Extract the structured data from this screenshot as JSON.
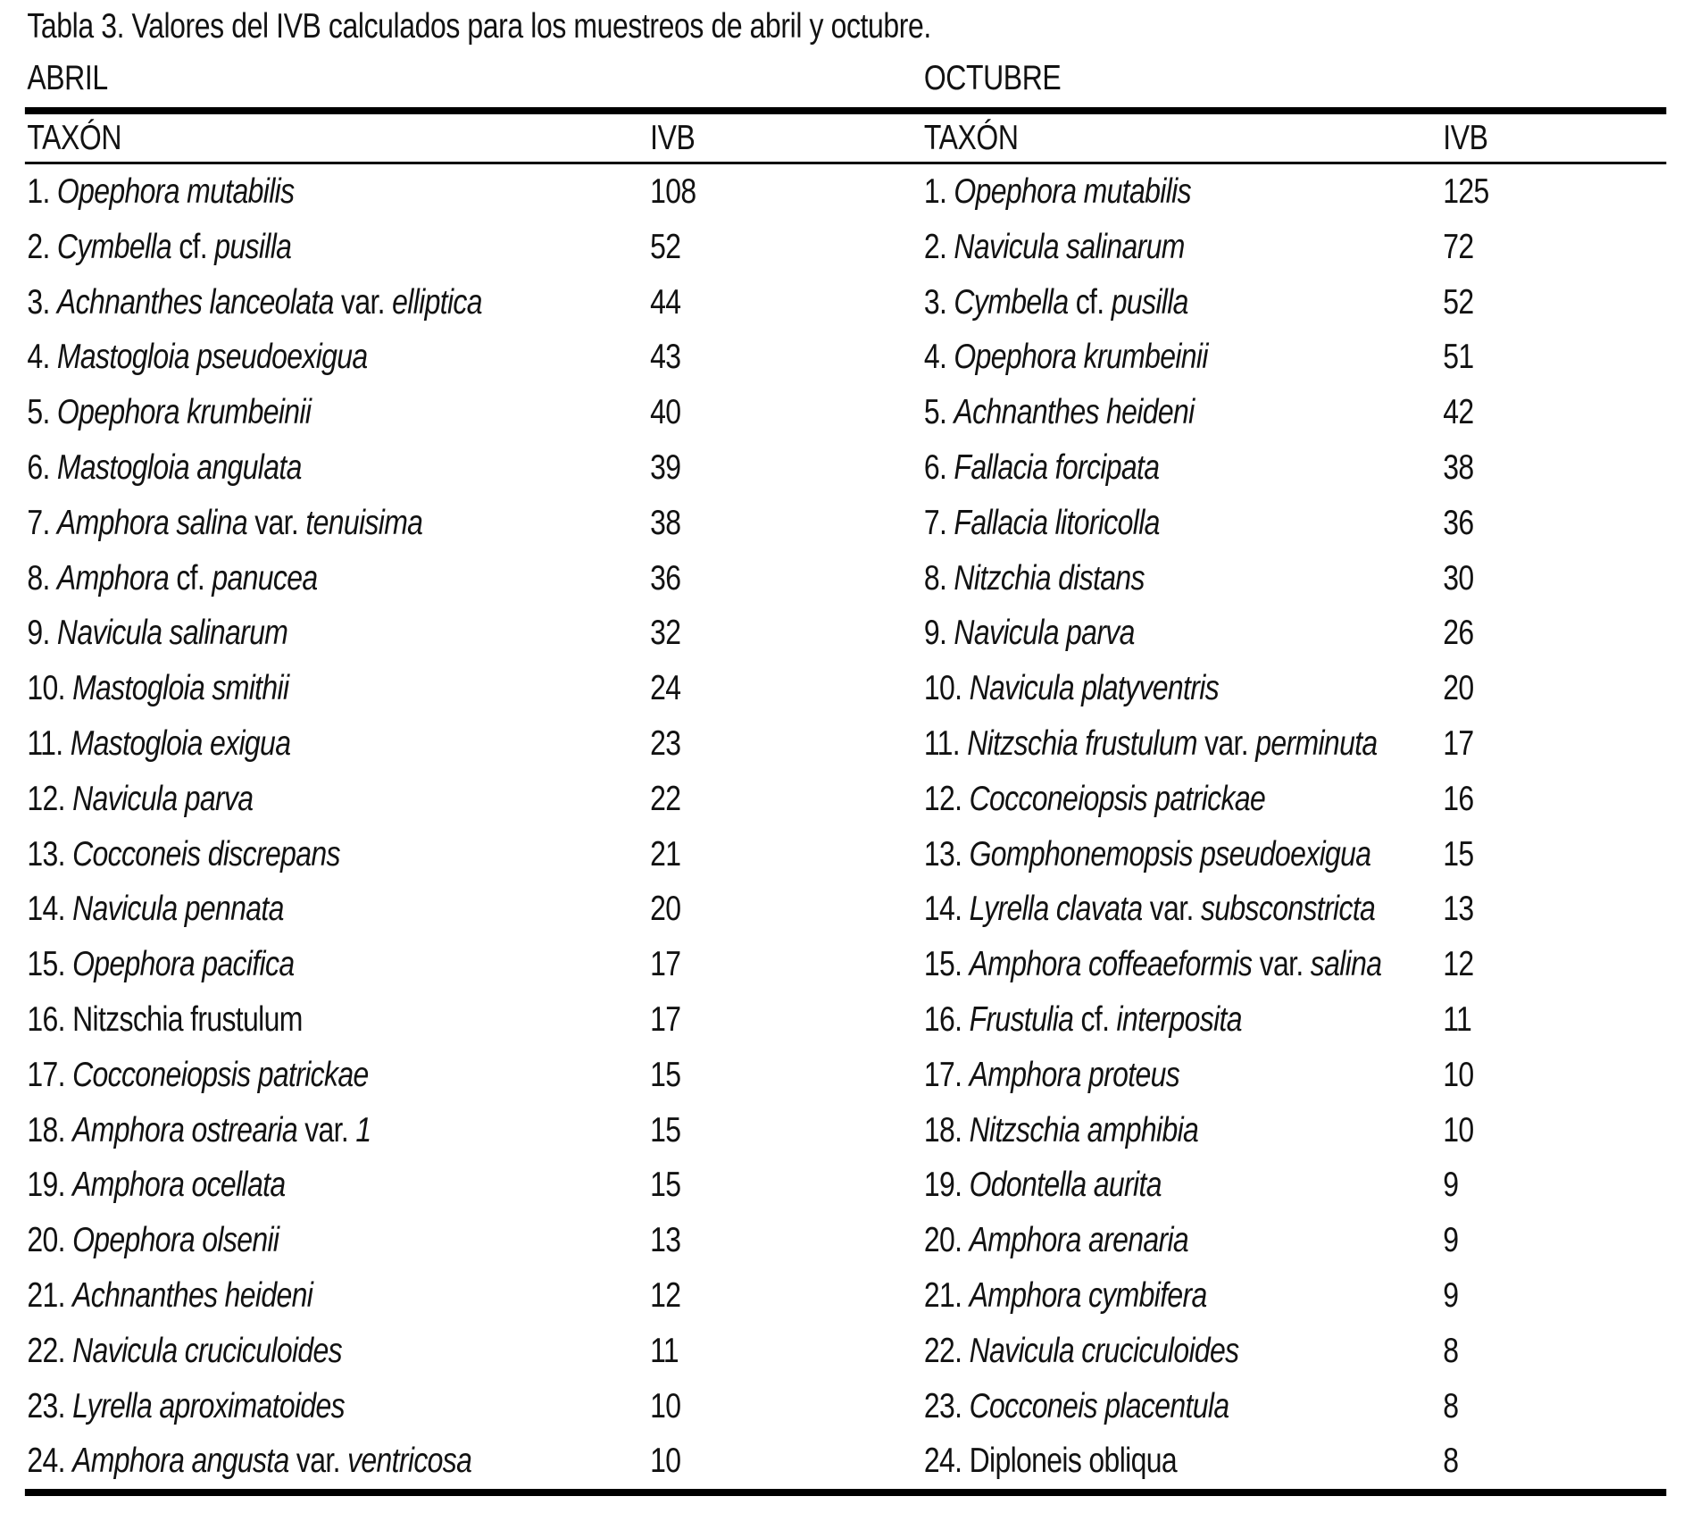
{
  "title": "Tabla 3. Valores del IVB calculados para los muestreos de abril y octubre.",
  "sections": [
    {
      "month": "ABRIL",
      "col_taxon": "TAXÓN",
      "col_ivb": "IVB",
      "rows": [
        {
          "num": "1.",
          "name": [
            [
              "Opephora mutabilis",
              true
            ]
          ],
          "ivb": "108"
        },
        {
          "num": "2.",
          "name": [
            [
              "Cymbella ",
              true
            ],
            [
              "cf. ",
              false
            ],
            [
              "pusilla",
              true
            ]
          ],
          "ivb": "52"
        },
        {
          "num": "3.",
          "name": [
            [
              "Achnanthes lanceolata ",
              true
            ],
            [
              "var. ",
              false
            ],
            [
              "elliptica",
              true
            ]
          ],
          "ivb": "44"
        },
        {
          "num": "4.",
          "name": [
            [
              "Mastogloia pseudoexigua",
              true
            ]
          ],
          "ivb": "43"
        },
        {
          "num": "5.",
          "name": [
            [
              "Opephora krumbeinii",
              true
            ]
          ],
          "ivb": "40"
        },
        {
          "num": "6.",
          "name": [
            [
              "Mastogloia angulata",
              true
            ]
          ],
          "ivb": "39"
        },
        {
          "num": "7.",
          "name": [
            [
              "Amphora salina ",
              true
            ],
            [
              "var. ",
              false
            ],
            [
              "tenuisima",
              true
            ]
          ],
          "ivb": "38"
        },
        {
          "num": "8.",
          "name": [
            [
              "Amphora ",
              true
            ],
            [
              "cf. ",
              false
            ],
            [
              "panucea",
              true
            ]
          ],
          "ivb": "36"
        },
        {
          "num": "9.",
          "name": [
            [
              "Navicula salinarum",
              true
            ]
          ],
          "ivb": "32"
        },
        {
          "num": "10.",
          "name": [
            [
              "Mastogloia smithii",
              true
            ]
          ],
          "ivb": "24"
        },
        {
          "num": "11.",
          "name": [
            [
              "Mastogloia exigua",
              true
            ]
          ],
          "ivb": "23"
        },
        {
          "num": "12.",
          "name": [
            [
              "Navicula parva",
              true
            ]
          ],
          "ivb": "22"
        },
        {
          "num": "13.",
          "name": [
            [
              "Cocconeis discrepans",
              true
            ]
          ],
          "ivb": "21"
        },
        {
          "num": "14.",
          "name": [
            [
              "Navicula pennata",
              true
            ]
          ],
          "ivb": "20"
        },
        {
          "num": "15.",
          "name": [
            [
              "Opephora pacifica",
              true
            ]
          ],
          "ivb": "17"
        },
        {
          "num": "16.",
          "name": [
            [
              "Nitzschia frustulum",
              false
            ]
          ],
          "ivb": "17"
        },
        {
          "num": "17.",
          "name": [
            [
              "Cocconeiopsis patrickae",
              true
            ]
          ],
          "ivb": "15"
        },
        {
          "num": "18.",
          "name": [
            [
              "Amphora ostrearia ",
              true
            ],
            [
              "var. ",
              false
            ],
            [
              "1",
              true
            ]
          ],
          "ivb": "15"
        },
        {
          "num": "19.",
          "name": [
            [
              "Amphora ocellata",
              true
            ]
          ],
          "ivb": "15"
        },
        {
          "num": "20.",
          "name": [
            [
              "Opephora olsenii",
              true
            ]
          ],
          "ivb": "13"
        },
        {
          "num": "21.",
          "name": [
            [
              "Achnanthes heideni",
              true
            ]
          ],
          "ivb": "12"
        },
        {
          "num": "22.",
          "name": [
            [
              "Navicula cruciculoides",
              true
            ]
          ],
          "ivb": "11"
        },
        {
          "num": "23.",
          "name": [
            [
              "Lyrella aproximatoides",
              true
            ]
          ],
          "ivb": "10"
        },
        {
          "num": "24.",
          "name": [
            [
              "Amphora angusta ",
              true
            ],
            [
              "var. ",
              false
            ],
            [
              "ventricosa",
              true
            ]
          ],
          "ivb": "10"
        }
      ]
    },
    {
      "month": "OCTUBRE",
      "col_taxon": "TAXÓN",
      "col_ivb": "IVB",
      "rows": [
        {
          "num": "1.",
          "name": [
            [
              "Opephora mutabilis",
              true
            ]
          ],
          "ivb": "125"
        },
        {
          "num": "2.",
          "name": [
            [
              "Navicula salinarum",
              true
            ]
          ],
          "ivb": "72"
        },
        {
          "num": "3.",
          "name": [
            [
              "Cymbella ",
              true
            ],
            [
              "cf. ",
              false
            ],
            [
              "pusilla",
              true
            ]
          ],
          "ivb": "52"
        },
        {
          "num": "4.",
          "name": [
            [
              "Opephora krumbeinii",
              true
            ]
          ],
          "ivb": "51"
        },
        {
          "num": "5.",
          "name": [
            [
              "Achnanthes heideni",
              true
            ]
          ],
          "ivb": "42"
        },
        {
          "num": "6.",
          "name": [
            [
              "Fallacia forcipata",
              true
            ]
          ],
          "ivb": "38"
        },
        {
          "num": "7.",
          "name": [
            [
              "Fallacia litoricolla",
              true
            ]
          ],
          "ivb": "36"
        },
        {
          "num": "8.",
          "name": [
            [
              "Nitzchia distans",
              true
            ]
          ],
          "ivb": "30"
        },
        {
          "num": "9.",
          "name": [
            [
              "Navicula parva",
              true
            ]
          ],
          "ivb": "26"
        },
        {
          "num": "10.",
          "name": [
            [
              "Navicula platyventris",
              true
            ]
          ],
          "ivb": "20"
        },
        {
          "num": "11.",
          "name": [
            [
              "Nitzschia frustulum ",
              true
            ],
            [
              "var. ",
              false
            ],
            [
              "perminuta",
              true
            ]
          ],
          "ivb": "17"
        },
        {
          "num": "12.",
          "name": [
            [
              "Cocconeiopsis patrickae",
              true
            ]
          ],
          "ivb": "16"
        },
        {
          "num": "13.",
          "name": [
            [
              "Gomphonemopsis pseudoexigua",
              true
            ]
          ],
          "ivb": "15"
        },
        {
          "num": "14.",
          "name": [
            [
              "Lyrella clavata ",
              true
            ],
            [
              "var. ",
              false
            ],
            [
              "subsconstricta",
              true
            ]
          ],
          "ivb": "13"
        },
        {
          "num": "15.",
          "name": [
            [
              "Amphora coffeaeformis ",
              true
            ],
            [
              "var. ",
              false
            ],
            [
              "salina",
              true
            ]
          ],
          "ivb": "12"
        },
        {
          "num": "16.",
          "name": [
            [
              "Frustulia ",
              true
            ],
            [
              "cf. ",
              false
            ],
            [
              "interposita",
              true
            ]
          ],
          "ivb": "11"
        },
        {
          "num": "17.",
          "name": [
            [
              "Amphora proteus",
              true
            ]
          ],
          "ivb": "10"
        },
        {
          "num": "18.",
          "name": [
            [
              "Nitzschia amphibia",
              true
            ]
          ],
          "ivb": "10"
        },
        {
          "num": "19.",
          "name": [
            [
              "Odontella aurita",
              true
            ]
          ],
          "ivb": "9"
        },
        {
          "num": "20.",
          "name": [
            [
              "Amphora arenaria",
              true
            ]
          ],
          "ivb": "9"
        },
        {
          "num": "21.",
          "name": [
            [
              "Amphora cymbifera",
              true
            ]
          ],
          "ivb": "9"
        },
        {
          "num": "22.",
          "name": [
            [
              "Navicula cruciculoides",
              true
            ]
          ],
          "ivb": "8"
        },
        {
          "num": "23.",
          "name": [
            [
              "Cocconeis placentula",
              true
            ]
          ],
          "ivb": "8"
        },
        {
          "num": "24.",
          "name": [
            [
              "Diploneis obliqua",
              false
            ]
          ],
          "ivb": "8"
        }
      ]
    }
  ]
}
